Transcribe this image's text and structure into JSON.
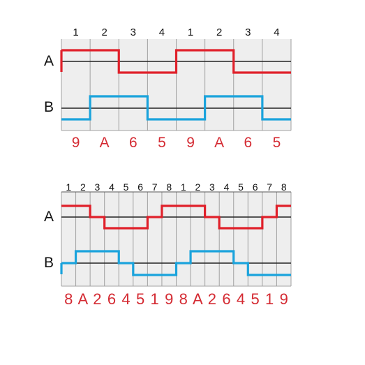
{
  "colors": {
    "channel_a": "#e0202a",
    "channel_b": "#1aa3dc",
    "code_text": "#d42a32",
    "grid_line": "#a0a0a0",
    "panel_fill": "#eeeeee",
    "axis_line": "#222222"
  },
  "diagrams": [
    {
      "step_labels": [
        "1",
        "2",
        "3",
        "4",
        "1",
        "2",
        "3",
        "4"
      ],
      "channel_a_label": "A",
      "channel_b_label": "B",
      "channel_a_levels": [
        1,
        1,
        0,
        0,
        1,
        1,
        0,
        0
      ],
      "channel_b_levels": [
        0,
        1,
        1,
        0,
        0,
        1,
        1,
        0
      ],
      "codes": [
        "9",
        "A",
        "6",
        "5",
        "9",
        "A",
        "6",
        "5"
      ]
    },
    {
      "step_labels": [
        "1",
        "2",
        "3",
        "4",
        "5",
        "6",
        "7",
        "8",
        "1",
        "2",
        "3",
        "4",
        "5",
        "6",
        "7",
        "8"
      ],
      "channel_a_label": "A",
      "channel_b_label": "B",
      "channel_a_levels": [
        2,
        2,
        1,
        0,
        0,
        0,
        1,
        2,
        2,
        2,
        1,
        0,
        0,
        0,
        1,
        2
      ],
      "channel_b_levels": [
        1,
        2,
        2,
        2,
        1,
        0,
        0,
        0,
        1,
        2,
        2,
        2,
        1,
        0,
        0,
        0
      ],
      "codes": [
        "8",
        "A",
        "2",
        "6",
        "4",
        "5",
        "1",
        "9",
        "8",
        "A",
        "2",
        "6",
        "4",
        "5",
        "1",
        "9"
      ]
    }
  ]
}
